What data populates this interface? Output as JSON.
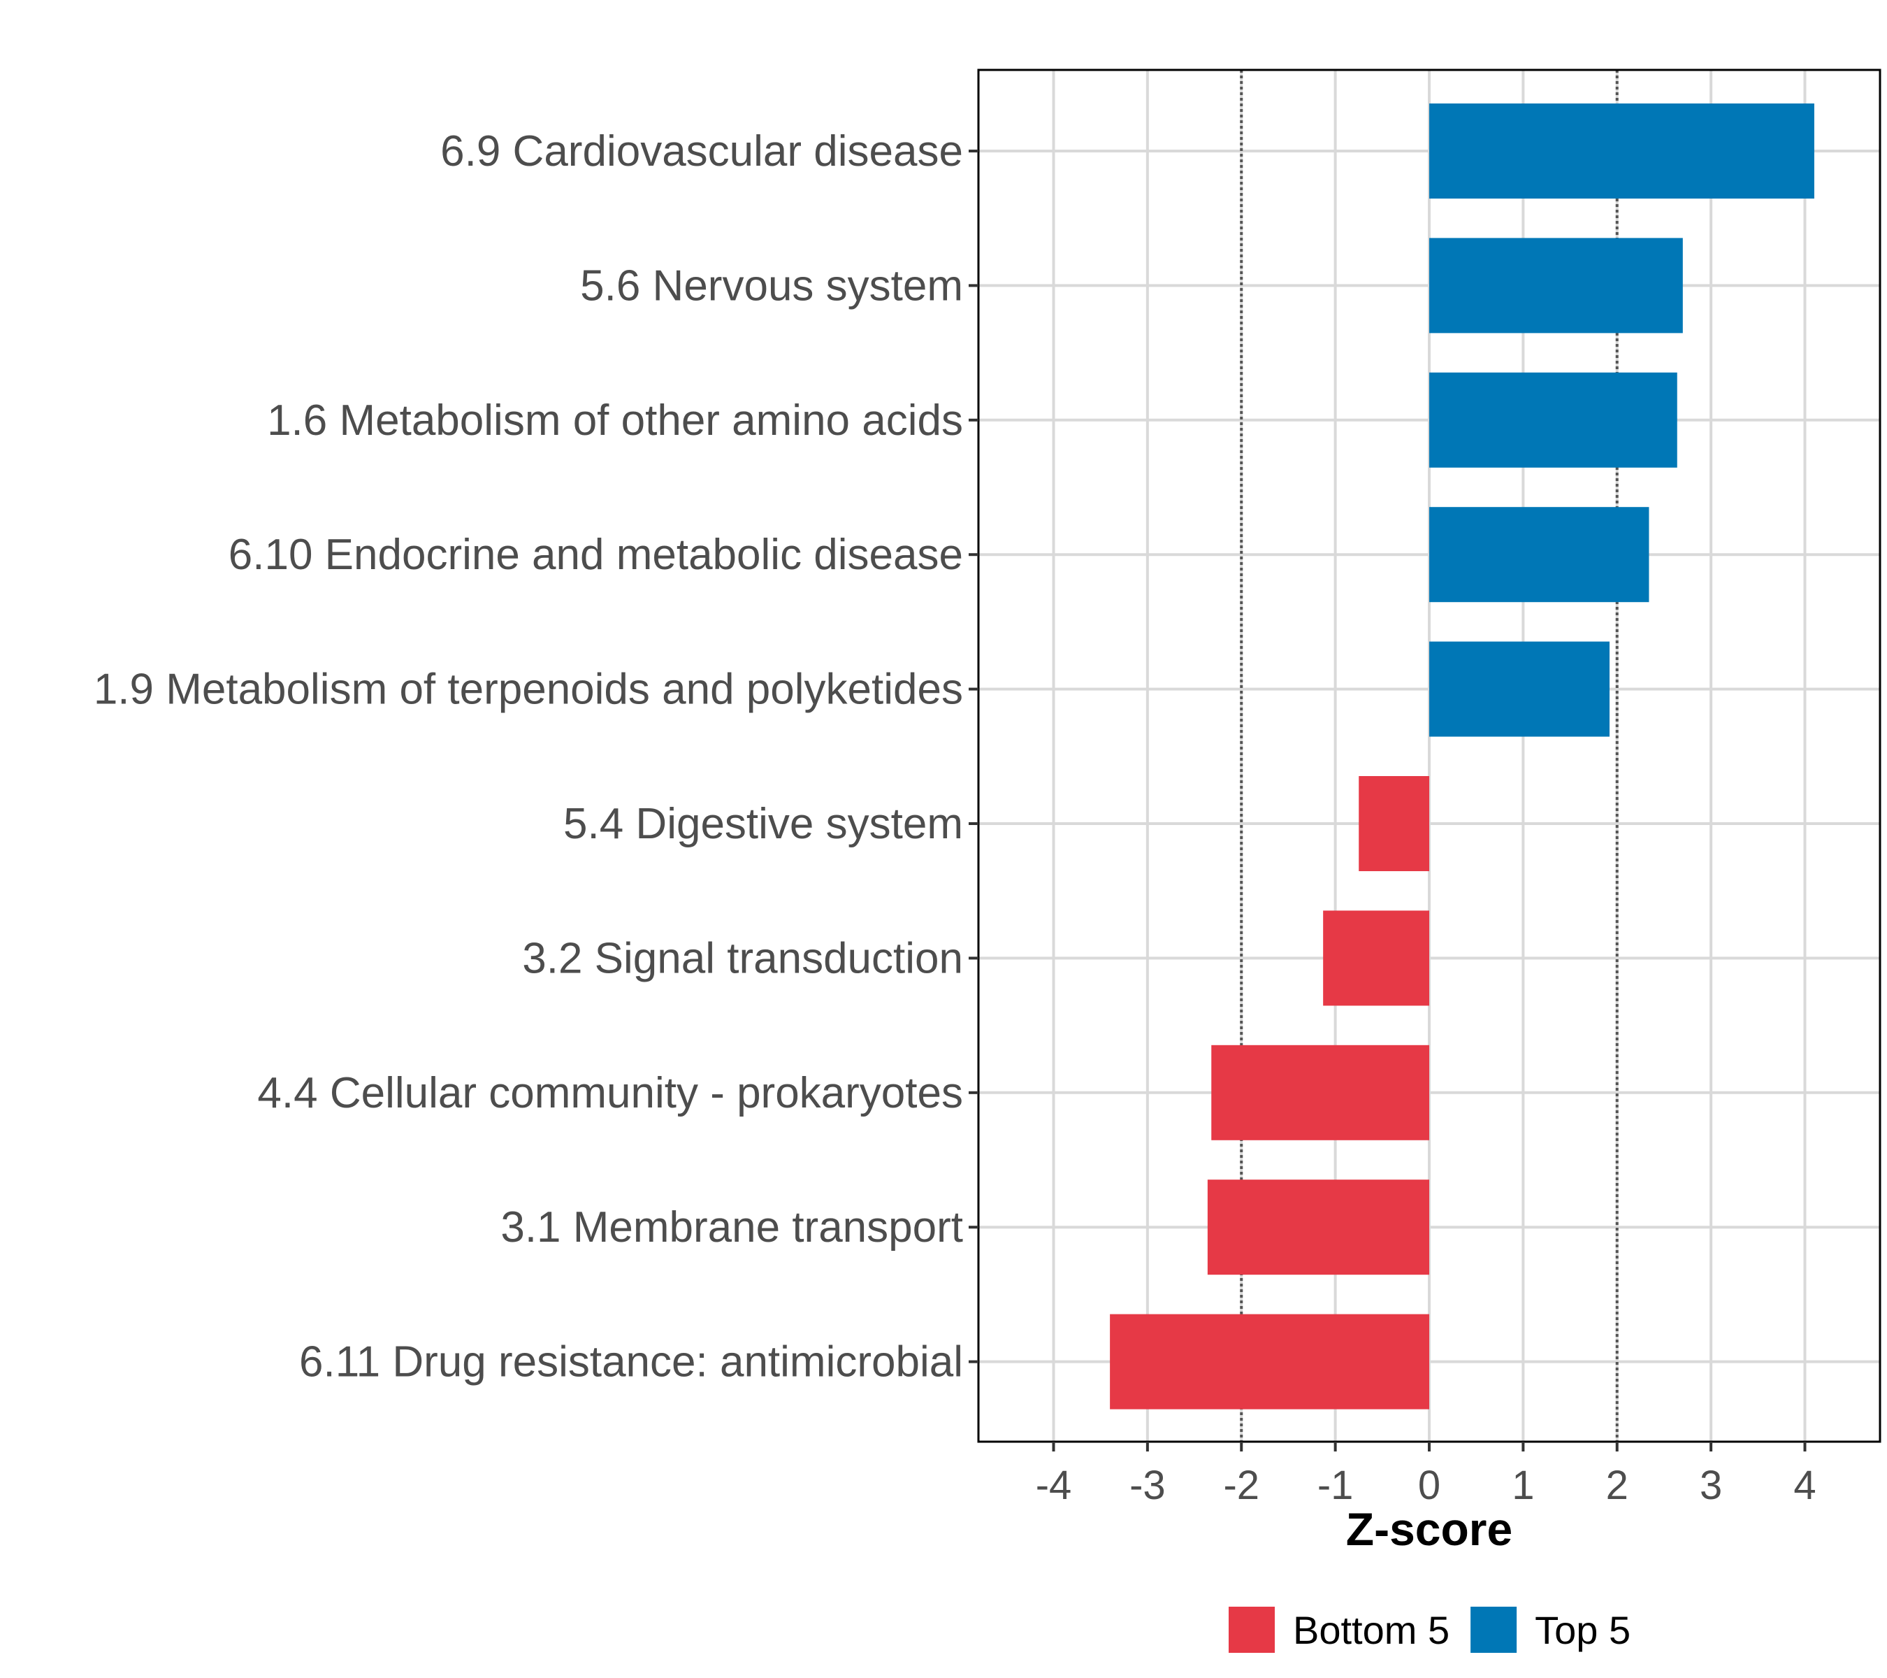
{
  "chart_data": {
    "type": "bar",
    "orientation": "horizontal",
    "xlabel": "Z-score",
    "ylabel": "",
    "xlim": [
      -4.8,
      4.8
    ],
    "xticks": [
      -4,
      -3,
      -2,
      -1,
      0,
      1,
      2,
      3,
      4
    ],
    "xtick_labels": [
      "-4",
      "-3",
      "-2",
      "-1",
      "0",
      "1",
      "2",
      "3",
      "4"
    ],
    "reference_lines": [
      -2,
      2
    ],
    "grid": true,
    "categories": [
      "6.9 Cardiovascular disease",
      "5.6 Nervous system",
      "1.6 Metabolism of other amino acids",
      "6.10 Endocrine and metabolic disease",
      "1.9 Metabolism of terpenoids and polyketides",
      "5.4 Digestive system",
      "3.2 Signal transduction",
      "4.4 Cellular community - prokaryotes",
      "3.1 Membrane transport",
      "6.11 Drug resistance: antimicrobial"
    ],
    "values": [
      4.1,
      2.7,
      2.64,
      2.34,
      1.92,
      -0.75,
      -1.13,
      -2.32,
      -2.36,
      -3.4
    ],
    "groups": [
      "Top 5",
      "Top 5",
      "Top 5",
      "Top 5",
      "Top 5",
      "Bottom 5",
      "Bottom 5",
      "Bottom 5",
      "Bottom 5",
      "Bottom 5"
    ],
    "legend": {
      "position": "bottom",
      "items": [
        {
          "label": "Bottom 5",
          "color": "#e63946"
        },
        {
          "label": "Top 5",
          "color": "#0077b6"
        }
      ]
    },
    "colors": {
      "Top 5": "#0077b6",
      "Bottom 5": "#e63946"
    }
  }
}
